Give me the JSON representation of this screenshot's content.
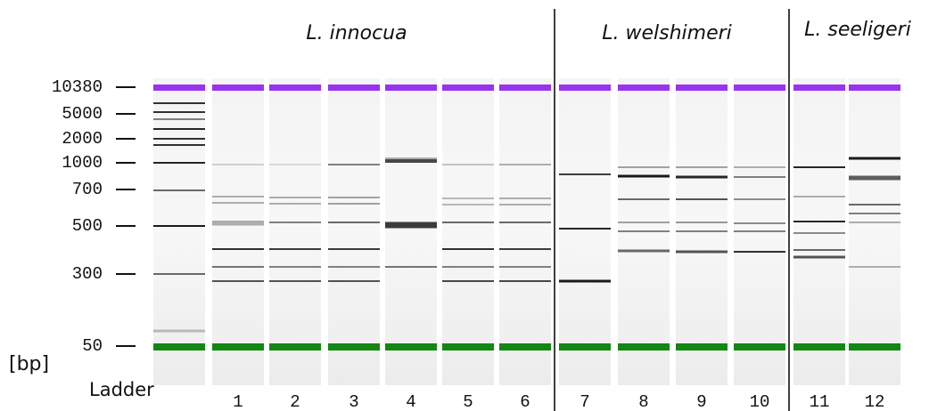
{
  "group_labels": [
    "L. innocua",
    "L. welshimeri",
    "L. seeligeri"
  ],
  "marker_labels": [
    10380,
    5000,
    2000,
    1000,
    700,
    500,
    300,
    50
  ],
  "unit_label": "[bp]",
  "ladder_label": "Ladder",
  "lane_labels": [
    1,
    2,
    3,
    4,
    5,
    6,
    7,
    8,
    9,
    10,
    11,
    12
  ]
}
